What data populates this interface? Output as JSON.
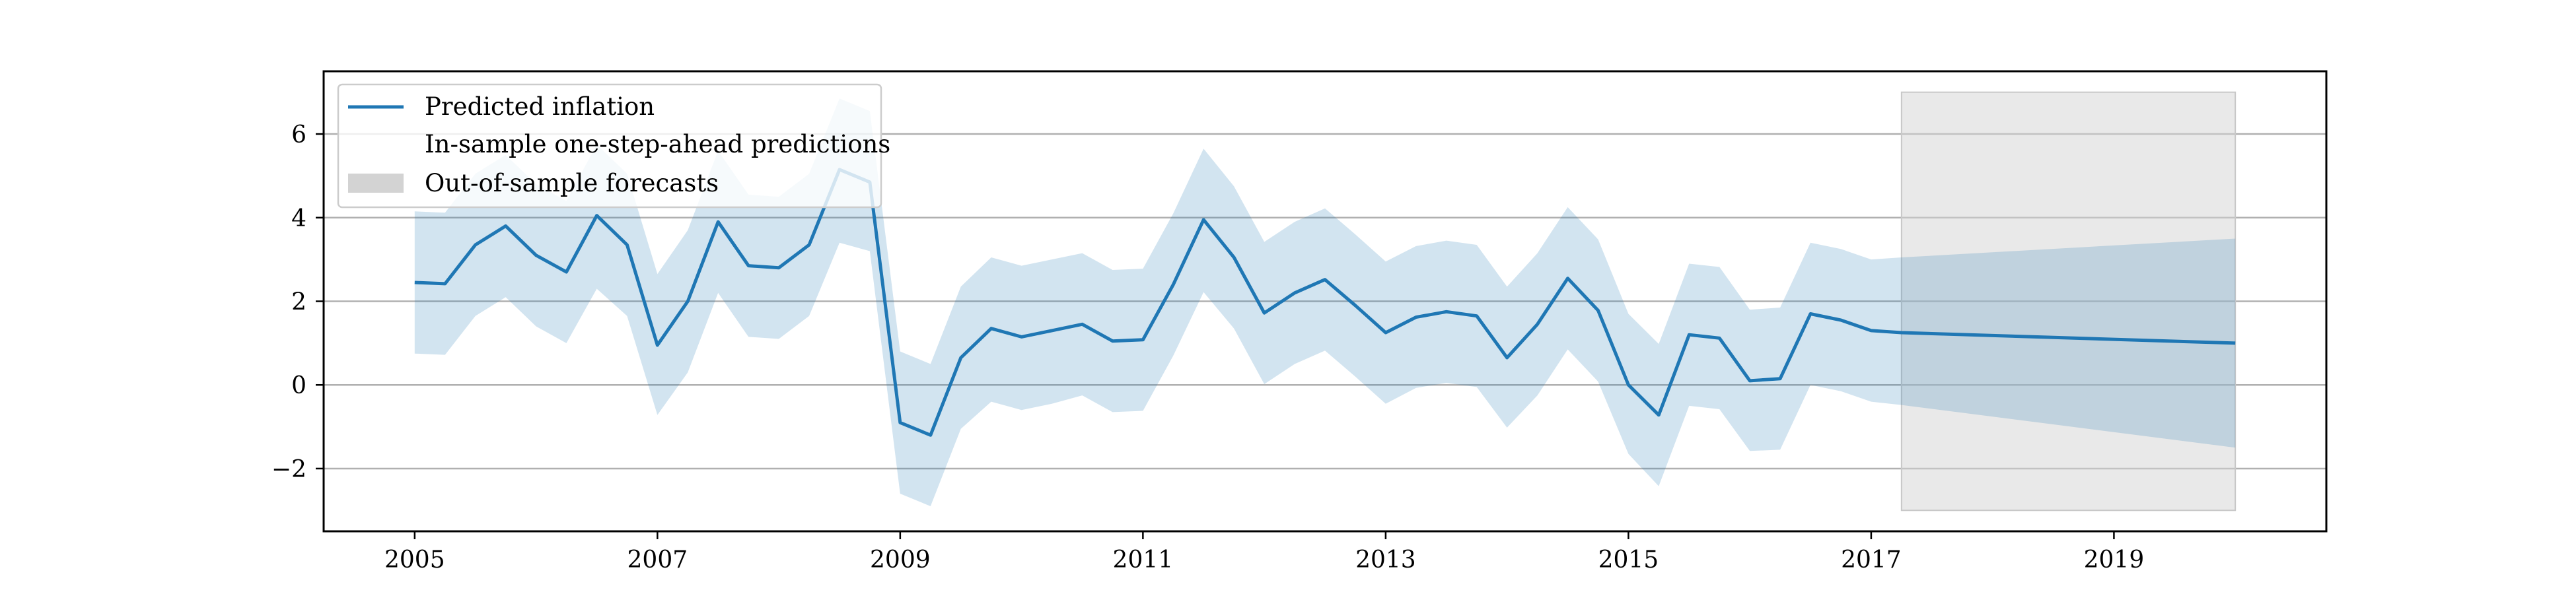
{
  "chart_data": {
    "type": "line",
    "title": "",
    "xlabel": "",
    "ylabel": "",
    "xlim": [
      2004.25,
      2020.75
    ],
    "ylim": [
      -3.5,
      7.5
    ],
    "x_ticks": [
      2005,
      2007,
      2009,
      2011,
      2013,
      2015,
      2017,
      2019
    ],
    "x_tick_labels": [
      "2005",
      "2007",
      "2009",
      "2011",
      "2013",
      "2015",
      "2017",
      "2019"
    ],
    "y_ticks": [
      -2,
      0,
      2,
      4,
      6
    ],
    "y_tick_labels": [
      "−2",
      "0",
      "2",
      "4",
      "6"
    ],
    "grid": "horizontal",
    "legend_position": "top-left",
    "legend": [
      {
        "label": "Predicted inflation",
        "kind": "line"
      },
      {
        "label": "In-sample one-step-ahead predictions",
        "kind": "none"
      },
      {
        "label": "Out-of-sample forecasts",
        "kind": "patch"
      }
    ],
    "colors": {
      "line": "#1f77b4",
      "band": "#1f77b4",
      "forecast_region": "#d3d3d3"
    },
    "forecast_region": {
      "x_start": 2017.25,
      "x_end": 2020.0,
      "y_range": [
        -3.0,
        7.0
      ]
    },
    "x": [
      2005.0,
      2005.25,
      2005.5,
      2005.75,
      2006.0,
      2006.25,
      2006.5,
      2006.75,
      2007.0,
      2007.25,
      2007.5,
      2007.75,
      2008.0,
      2008.25,
      2008.5,
      2008.75,
      2009.0,
      2009.25,
      2009.5,
      2009.75,
      2010.0,
      2010.25,
      2010.5,
      2010.75,
      2011.0,
      2011.25,
      2011.5,
      2011.75,
      2012.0,
      2012.25,
      2012.5,
      2012.75,
      2013.0,
      2013.25,
      2013.5,
      2013.75,
      2014.0,
      2014.25,
      2014.5,
      2014.75,
      2015.0,
      2015.25,
      2015.5,
      2015.75,
      2016.0,
      2016.25,
      2016.5,
      2016.75,
      2017.0,
      2017.25,
      2020.0
    ],
    "series": [
      {
        "name": "Predicted inflation",
        "values": [
          2.45,
          2.42,
          3.35,
          3.8,
          3.1,
          2.7,
          4.05,
          3.35,
          0.95,
          2.0,
          3.9,
          2.85,
          2.8,
          3.35,
          5.15,
          4.85,
          -0.9,
          -1.2,
          0.65,
          1.35,
          1.15,
          1.3,
          1.45,
          1.05,
          1.08,
          2.4,
          3.95,
          3.05,
          1.72,
          2.2,
          2.52,
          1.9,
          1.25,
          1.62,
          1.75,
          1.65,
          0.65,
          1.45,
          2.55,
          1.78,
          0.0,
          -0.72,
          1.2,
          1.12,
          0.1,
          0.15,
          1.7,
          1.55,
          1.3,
          1.25,
          1.0
        ]
      }
    ],
    "band_lower": [
      0.75,
      0.72,
      1.65,
      2.1,
      1.4,
      1.0,
      2.3,
      1.65,
      -0.72,
      0.3,
      2.2,
      1.15,
      1.1,
      1.65,
      3.4,
      3.2,
      -2.6,
      -2.9,
      -1.05,
      -0.4,
      -0.6,
      -0.45,
      -0.25,
      -0.65,
      -0.62,
      0.7,
      2.22,
      1.35,
      0.02,
      0.5,
      0.82,
      0.2,
      -0.45,
      -0.07,
      0.05,
      -0.05,
      -1.02,
      -0.25,
      0.85,
      0.08,
      -1.65,
      -2.42,
      -0.5,
      -0.58,
      -1.58,
      -1.55,
      0.0,
      -0.15,
      -0.4,
      -0.48,
      -1.5
    ],
    "band_upper": [
      4.15,
      4.12,
      5.05,
      5.5,
      4.8,
      4.4,
      5.75,
      5.05,
      2.65,
      3.7,
      5.6,
      4.55,
      4.5,
      5.05,
      6.85,
      6.55,
      0.8,
      0.5,
      2.35,
      3.05,
      2.85,
      3.0,
      3.15,
      2.75,
      2.78,
      4.1,
      5.65,
      4.75,
      3.42,
      3.9,
      4.22,
      3.6,
      2.95,
      3.32,
      3.45,
      3.35,
      2.35,
      3.15,
      4.25,
      3.48,
      1.7,
      0.98,
      2.9,
      2.82,
      1.8,
      1.85,
      3.4,
      3.25,
      3.0,
      3.05,
      3.5
    ]
  }
}
